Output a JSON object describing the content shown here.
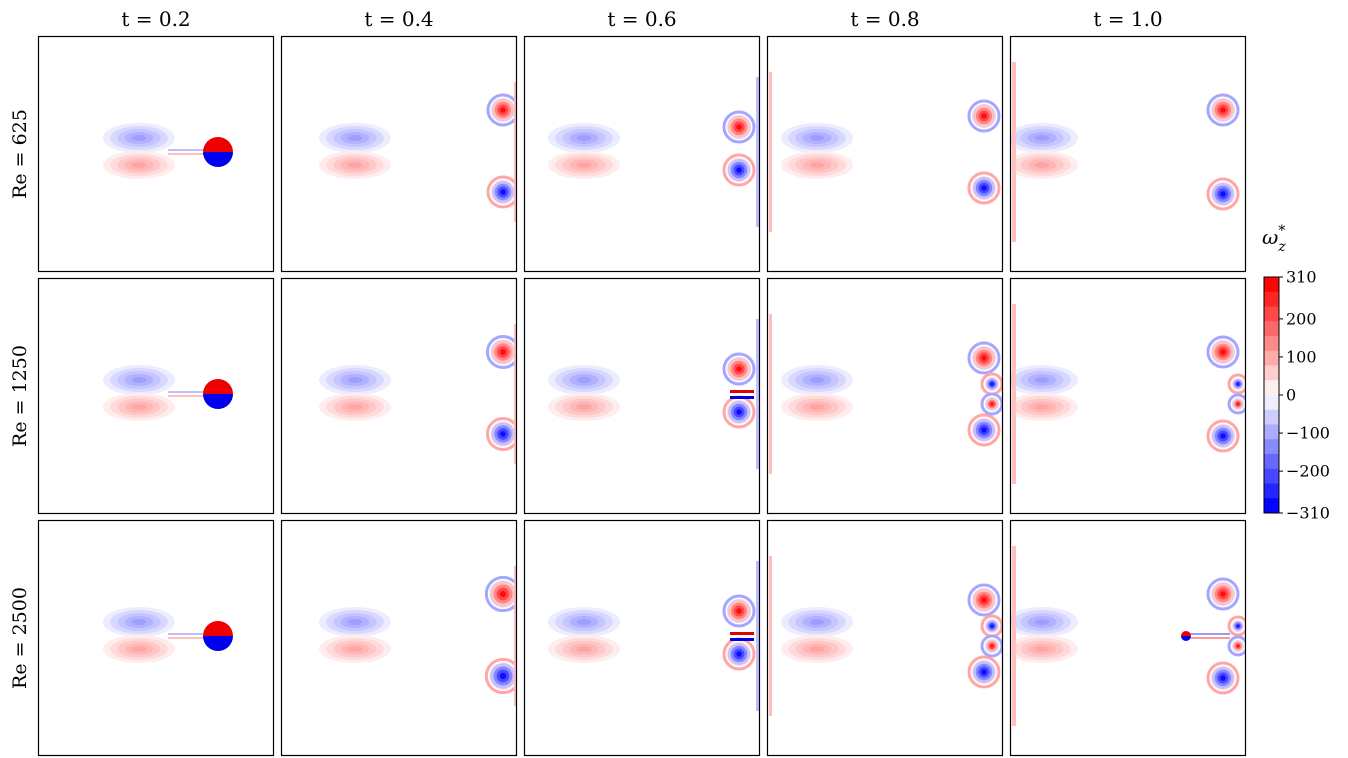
{
  "chart_data": {
    "type": "heatmap",
    "layout": "small-multiples grid",
    "column_titles": [
      "t = 0.2",
      "t = 0.4",
      "t = 0.6",
      "t = 0.8",
      "t = 1.0"
    ],
    "row_titles": [
      "Re = 625",
      "Re = 1250",
      "Re = 2500"
    ],
    "colorbar": {
      "label": "ω*z",
      "label_main": "ω",
      "label_sup": "*",
      "label_sub": "z",
      "range": [
        -310,
        310
      ],
      "ticks": [
        310,
        200,
        100,
        0,
        -100,
        -200,
        -310
      ],
      "tick_labels": [
        "310",
        "200",
        "100",
        "0",
        "−100",
        "−200",
        "−310"
      ],
      "levels": 16,
      "colormap": "bwr",
      "positive_color": "#ff0000",
      "negative_color": "#0000ff",
      "zero_color": "#ffffff"
    },
    "grid": false,
    "axes_ticks": false
  }
}
